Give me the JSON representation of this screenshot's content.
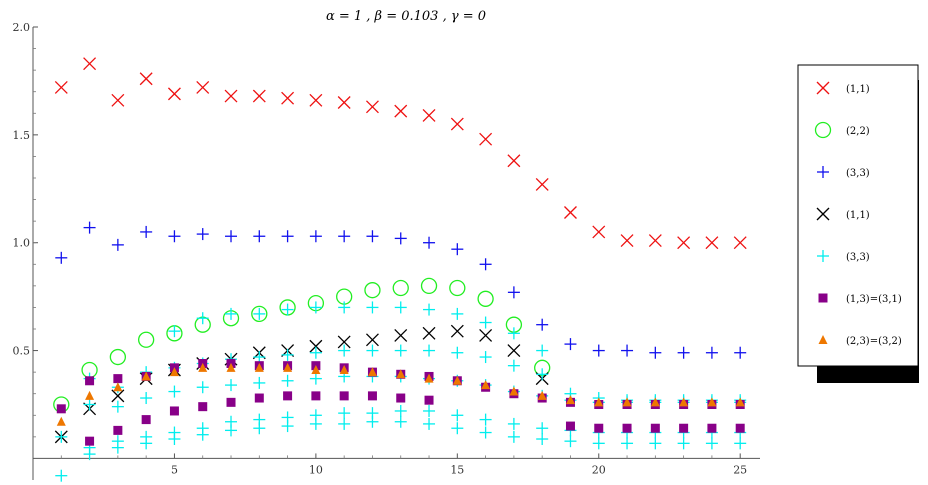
{
  "chart_data": {
    "type": "scatter",
    "title": "α = 1 ,  β = 0.103 ,  γ = 0",
    "xlabel": "",
    "ylabel": "",
    "xlim": [
      0,
      25.7
    ],
    "ylim": [
      -0.1,
      2.0
    ],
    "x_ticks": [
      5,
      10,
      15,
      20,
      25
    ],
    "y_ticks": [
      0.5,
      1.0,
      1.5,
      2.0
    ],
    "x_tick_labels": [
      "5",
      "10",
      "15",
      "20",
      "25"
    ],
    "y_tick_labels": [
      "0.5",
      "1.0",
      "1.5",
      "2.0"
    ],
    "grid": false,
    "legend_position": "right",
    "legend": [
      {
        "label": "(1,1)",
        "marker": "x",
        "color": "#ee1111"
      },
      {
        "label": "(2,2)",
        "marker": "circle",
        "color": "#22ee22"
      },
      {
        "label": "(3,3)",
        "marker": "plus",
        "color": "#1111ee"
      },
      {
        "label": "(1,1)",
        "marker": "x",
        "color": "#000000"
      },
      {
        "label": "(3,3)",
        "marker": "plus",
        "color": "#00eeee"
      },
      {
        "label": "(1,3)=(3,1)",
        "marker": "square",
        "color": "#880088"
      },
      {
        "label": "(2,3)=(3,2)",
        "marker": "triangle",
        "color": "#ee7700"
      }
    ],
    "series": [
      {
        "marker": "x",
        "color": "#ee1111",
        "points": [
          [
            1,
            1.72
          ],
          [
            2,
            1.83
          ],
          [
            3,
            1.66
          ],
          [
            4,
            1.76
          ],
          [
            5,
            1.69
          ],
          [
            6,
            1.72
          ],
          [
            7,
            1.68
          ],
          [
            8,
            1.68
          ],
          [
            9,
            1.67
          ],
          [
            10,
            1.66
          ],
          [
            11,
            1.65
          ],
          [
            12,
            1.63
          ],
          [
            13,
            1.61
          ],
          [
            14,
            1.59
          ],
          [
            15,
            1.55
          ],
          [
            16,
            1.48
          ],
          [
            17,
            1.38
          ],
          [
            18,
            1.27
          ],
          [
            19,
            1.14
          ],
          [
            20,
            1.05
          ],
          [
            21,
            1.01
          ],
          [
            22,
            1.01
          ],
          [
            23,
            1.0
          ],
          [
            24,
            1.0
          ],
          [
            25,
            1.0
          ]
        ]
      },
      {
        "marker": "circle",
        "color": "#22ee22",
        "points": [
          [
            1,
            0.25
          ],
          [
            2,
            0.41
          ],
          [
            3,
            0.47
          ],
          [
            4,
            0.55
          ],
          [
            5,
            0.58
          ],
          [
            6,
            0.62
          ],
          [
            7,
            0.65
          ],
          [
            8,
            0.67
          ],
          [
            9,
            0.7
          ],
          [
            10,
            0.72
          ],
          [
            11,
            0.75
          ],
          [
            12,
            0.78
          ],
          [
            13,
            0.79
          ],
          [
            14,
            0.8
          ],
          [
            15,
            0.79
          ],
          [
            16,
            0.74
          ],
          [
            17,
            0.62
          ],
          [
            18,
            0.42
          ]
        ]
      },
      {
        "marker": "plus",
        "color": "#1111ee",
        "points": [
          [
            1,
            0.93
          ],
          [
            2,
            1.07
          ],
          [
            3,
            0.99
          ],
          [
            4,
            1.05
          ],
          [
            5,
            1.03
          ],
          [
            6,
            1.04
          ],
          [
            7,
            1.03
          ],
          [
            8,
            1.03
          ],
          [
            9,
            1.03
          ],
          [
            10,
            1.03
          ],
          [
            11,
            1.03
          ],
          [
            12,
            1.03
          ],
          [
            13,
            1.02
          ],
          [
            14,
            1.0
          ],
          [
            15,
            0.97
          ],
          [
            16,
            0.9
          ],
          [
            17,
            0.77
          ],
          [
            18,
            0.62
          ],
          [
            19,
            0.53
          ],
          [
            20,
            0.5
          ],
          [
            21,
            0.5
          ],
          [
            22,
            0.49
          ],
          [
            23,
            0.49
          ],
          [
            24,
            0.49
          ],
          [
            25,
            0.49
          ]
        ]
      },
      {
        "marker": "x",
        "color": "#000000",
        "points": [
          [
            1,
            0.1
          ],
          [
            2,
            0.23
          ],
          [
            3,
            0.29
          ],
          [
            4,
            0.37
          ],
          [
            5,
            0.41
          ],
          [
            6,
            0.44
          ],
          [
            7,
            0.46
          ],
          [
            8,
            0.49
          ],
          [
            9,
            0.5
          ],
          [
            10,
            0.52
          ],
          [
            11,
            0.54
          ],
          [
            12,
            0.55
          ],
          [
            13,
            0.57
          ],
          [
            14,
            0.58
          ],
          [
            15,
            0.59
          ],
          [
            16,
            0.57
          ],
          [
            17,
            0.5
          ],
          [
            18,
            0.37
          ]
        ]
      },
      {
        "marker": "plus",
        "color": "#00eeee",
        "points": [
          [
            1,
            -0.08
          ],
          [
            1,
            0.1
          ],
          [
            2,
            0.02
          ],
          [
            2,
            0.05
          ],
          [
            2,
            0.25
          ],
          [
            2,
            0.37
          ],
          [
            3,
            0.05
          ],
          [
            3,
            0.08
          ],
          [
            3,
            0.24
          ],
          [
            3,
            0.33
          ],
          [
            4,
            0.07
          ],
          [
            4,
            0.1
          ],
          [
            4,
            0.28
          ],
          [
            4,
            0.4
          ],
          [
            5,
            0.09
          ],
          [
            5,
            0.12
          ],
          [
            5,
            0.31
          ],
          [
            5,
            0.42
          ],
          [
            5,
            0.59
          ],
          [
            6,
            0.11
          ],
          [
            6,
            0.14
          ],
          [
            6,
            0.33
          ],
          [
            6,
            0.44
          ],
          [
            6,
            0.65
          ],
          [
            7,
            0.13
          ],
          [
            7,
            0.17
          ],
          [
            7,
            0.34
          ],
          [
            7,
            0.46
          ],
          [
            7,
            0.67
          ],
          [
            8,
            0.14
          ],
          [
            8,
            0.18
          ],
          [
            8,
            0.35
          ],
          [
            8,
            0.47
          ],
          [
            8,
            0.67
          ],
          [
            9,
            0.15
          ],
          [
            9,
            0.19
          ],
          [
            9,
            0.36
          ],
          [
            9,
            0.48
          ],
          [
            9,
            0.69
          ],
          [
            10,
            0.16
          ],
          [
            10,
            0.2
          ],
          [
            10,
            0.37
          ],
          [
            10,
            0.49
          ],
          [
            10,
            0.7
          ],
          [
            11,
            0.16
          ],
          [
            11,
            0.21
          ],
          [
            11,
            0.38
          ],
          [
            11,
            0.5
          ],
          [
            11,
            0.7
          ],
          [
            12,
            0.17
          ],
          [
            12,
            0.21
          ],
          [
            12,
            0.38
          ],
          [
            12,
            0.5
          ],
          [
            12,
            0.7
          ],
          [
            13,
            0.17
          ],
          [
            13,
            0.22
          ],
          [
            13,
            0.38
          ],
          [
            13,
            0.5
          ],
          [
            13,
            0.7
          ],
          [
            14,
            0.16
          ],
          [
            14,
            0.22
          ],
          [
            14,
            0.37
          ],
          [
            14,
            0.5
          ],
          [
            14,
            0.69
          ],
          [
            15,
            0.14
          ],
          [
            15,
            0.2
          ],
          [
            15,
            0.36
          ],
          [
            15,
            0.49
          ],
          [
            15,
            0.67
          ],
          [
            16,
            0.12
          ],
          [
            16,
            0.18
          ],
          [
            16,
            0.34
          ],
          [
            16,
            0.47
          ],
          [
            16,
            0.63
          ],
          [
            17,
            0.1
          ],
          [
            17,
            0.16
          ],
          [
            17,
            0.31
          ],
          [
            17,
            0.43
          ],
          [
            17,
            0.58
          ],
          [
            18,
            0.09
          ],
          [
            18,
            0.14
          ],
          [
            18,
            0.29
          ],
          [
            18,
            0.39
          ],
          [
            18,
            0.5
          ],
          [
            19,
            0.08
          ],
          [
            19,
            0.13
          ],
          [
            19,
            0.27
          ],
          [
            19,
            0.3
          ],
          [
            20,
            0.07
          ],
          [
            20,
            0.12
          ],
          [
            20,
            0.26
          ],
          [
            20,
            0.28
          ],
          [
            21,
            0.07
          ],
          [
            21,
            0.12
          ],
          [
            21,
            0.26
          ],
          [
            21,
            0.27
          ],
          [
            22,
            0.07
          ],
          [
            22,
            0.12
          ],
          [
            22,
            0.26
          ],
          [
            22,
            0.27
          ],
          [
            23,
            0.07
          ],
          [
            23,
            0.12
          ],
          [
            23,
            0.26
          ],
          [
            23,
            0.27
          ],
          [
            24,
            0.07
          ],
          [
            24,
            0.12
          ],
          [
            24,
            0.26
          ],
          [
            24,
            0.27
          ],
          [
            25,
            0.07
          ],
          [
            25,
            0.12
          ],
          [
            25,
            0.26
          ],
          [
            25,
            0.27
          ]
        ]
      },
      {
        "marker": "square",
        "color": "#880088",
        "points": [
          [
            1,
            0.23
          ],
          [
            2,
            0.08
          ],
          [
            2,
            0.36
          ],
          [
            3,
            0.13
          ],
          [
            3,
            0.37
          ],
          [
            4,
            0.18
          ],
          [
            4,
            0.38
          ],
          [
            5,
            0.22
          ],
          [
            5,
            0.42
          ],
          [
            6,
            0.24
          ],
          [
            6,
            0.44
          ],
          [
            7,
            0.26
          ],
          [
            7,
            0.44
          ],
          [
            8,
            0.28
          ],
          [
            8,
            0.43
          ],
          [
            9,
            0.29
          ],
          [
            9,
            0.43
          ],
          [
            10,
            0.29
          ],
          [
            10,
            0.43
          ],
          [
            11,
            0.29
          ],
          [
            11,
            0.42
          ],
          [
            12,
            0.29
          ],
          [
            12,
            0.4
          ],
          [
            13,
            0.28
          ],
          [
            13,
            0.39
          ],
          [
            14,
            0.27
          ],
          [
            14,
            0.38
          ],
          [
            15,
            0.36
          ],
          [
            16,
            0.33
          ],
          [
            17,
            0.3
          ],
          [
            18,
            0.28
          ],
          [
            19,
            0.15
          ],
          [
            19,
            0.26
          ],
          [
            20,
            0.14
          ],
          [
            20,
            0.25
          ],
          [
            21,
            0.14
          ],
          [
            21,
            0.25
          ],
          [
            22,
            0.14
          ],
          [
            22,
            0.25
          ],
          [
            23,
            0.14
          ],
          [
            23,
            0.25
          ],
          [
            24,
            0.14
          ],
          [
            24,
            0.25
          ],
          [
            25,
            0.14
          ],
          [
            25,
            0.25
          ]
        ]
      },
      {
        "marker": "triangle",
        "color": "#ee7700",
        "points": [
          [
            1,
            0.17
          ],
          [
            2,
            0.29
          ],
          [
            3,
            0.33
          ],
          [
            4,
            0.38
          ],
          [
            5,
            0.4
          ],
          [
            6,
            0.42
          ],
          [
            7,
            0.42
          ],
          [
            8,
            0.42
          ],
          [
            9,
            0.42
          ],
          [
            10,
            0.41
          ],
          [
            11,
            0.41
          ],
          [
            12,
            0.4
          ],
          [
            13,
            0.39
          ],
          [
            14,
            0.37
          ],
          [
            15,
            0.36
          ],
          [
            16,
            0.34
          ],
          [
            17,
            0.31
          ],
          [
            18,
            0.29
          ],
          [
            19,
            0.27
          ],
          [
            20,
            0.26
          ],
          [
            21,
            0.26
          ],
          [
            22,
            0.26
          ],
          [
            23,
            0.26
          ],
          [
            24,
            0.26
          ],
          [
            25,
            0.26
          ]
        ]
      }
    ]
  }
}
